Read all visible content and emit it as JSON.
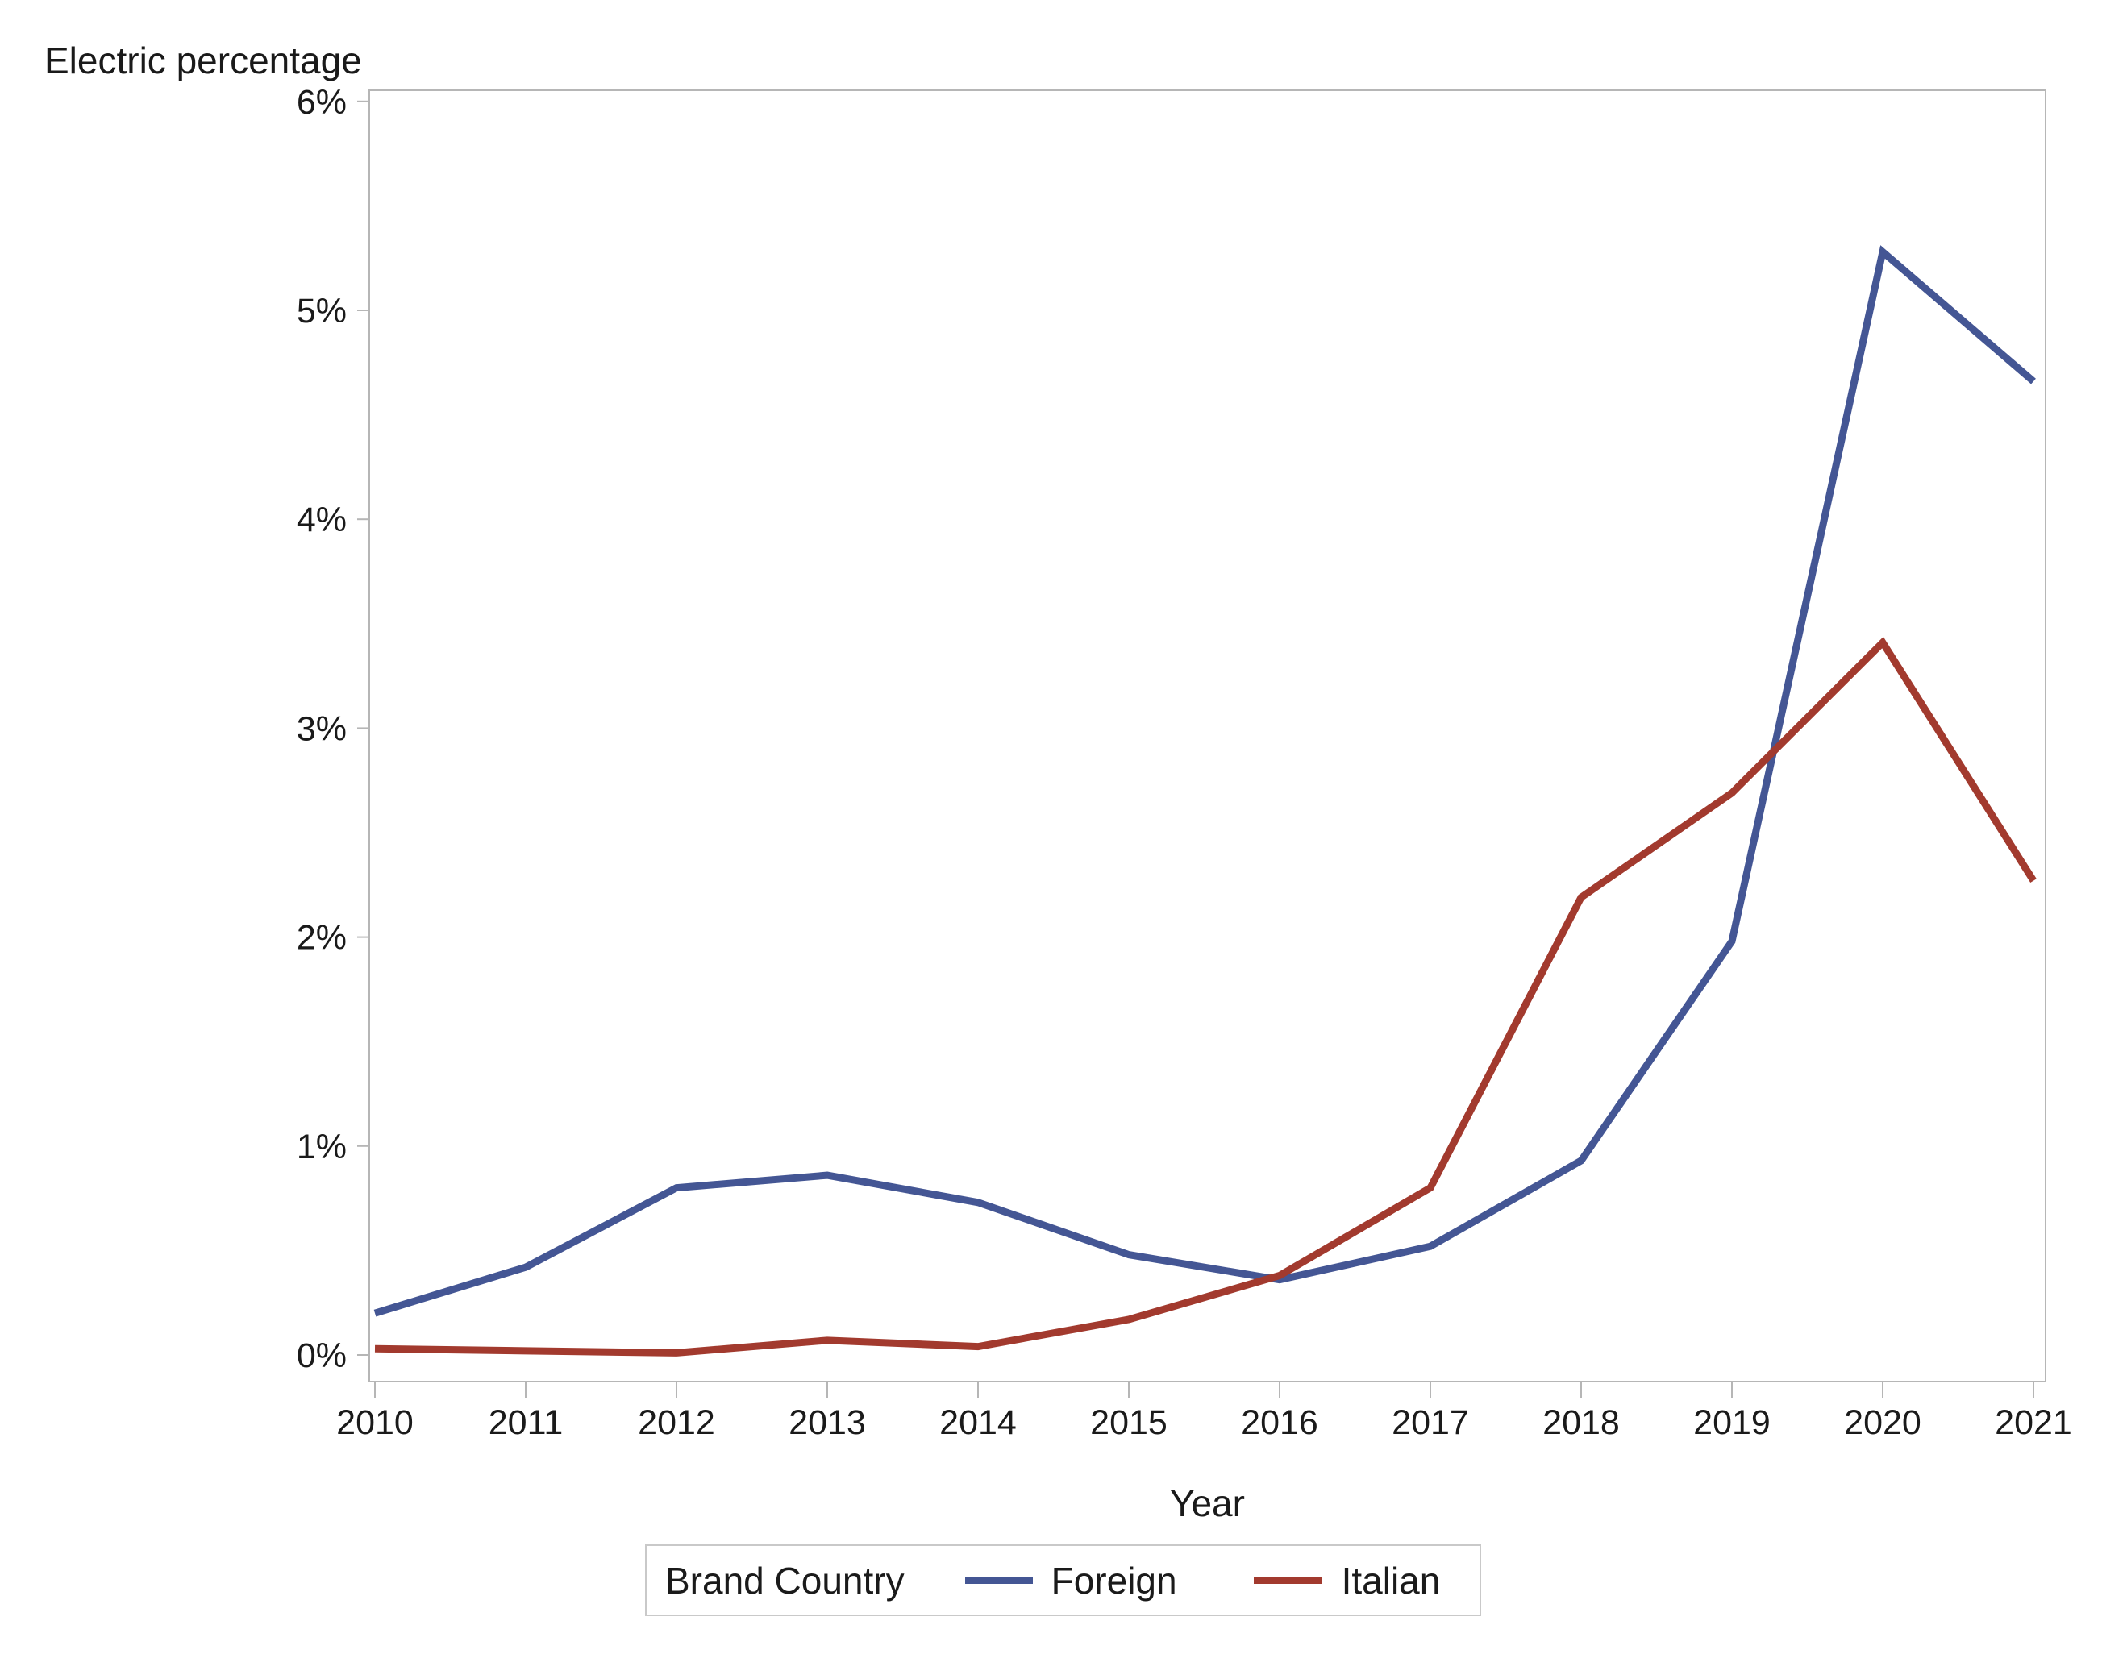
{
  "chart_data": {
    "type": "line",
    "title": "Electric percentage",
    "ylabel": "Electric percentage",
    "xlabel": "Year",
    "categories": [
      "2010",
      "2011",
      "2012",
      "2013",
      "2014",
      "2015",
      "2016",
      "2017",
      "2018",
      "2019",
      "2020",
      "2021"
    ],
    "series": [
      {
        "name": "Foreign",
        "color": "#445694",
        "values": [
          0.2,
          0.42,
          0.8,
          0.86,
          0.73,
          0.48,
          0.36,
          0.52,
          0.93,
          1.98,
          5.28,
          4.66
        ]
      },
      {
        "name": "Italian",
        "color": "#A23A2E",
        "values": [
          0.03,
          0.02,
          0.01,
          0.07,
          0.04,
          0.17,
          0.38,
          0.8,
          2.19,
          2.69,
          3.41,
          2.27
        ]
      }
    ],
    "ylim": [
      0,
      6
    ],
    "y_tick_labels": [
      "0%",
      "1%",
      "2%",
      "3%",
      "4%",
      "5%",
      "6%"
    ],
    "grid": false,
    "legend": {
      "title": "Brand Country",
      "position": "bottom"
    }
  },
  "colors": {
    "axis": "#b6b6b6",
    "text": "#1a1a1a",
    "legend_border": "#c9c9c9",
    "background": "#ffffff"
  }
}
